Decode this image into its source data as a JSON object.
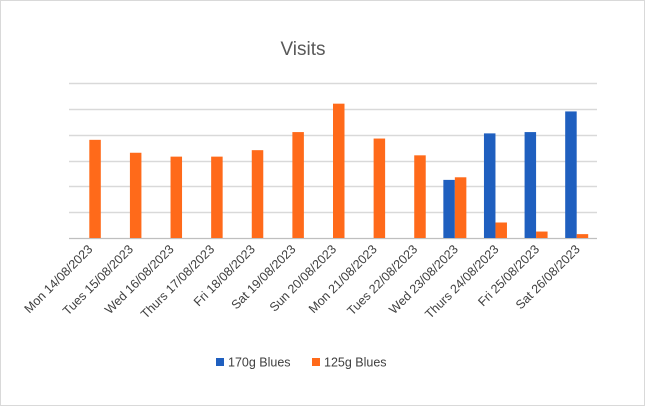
{
  "chart_data": {
    "type": "bar",
    "title": "Visits",
    "categories": [
      "Mon 14/08/2023",
      "Tues 15/08/2023",
      "Wed 16/08/2023",
      "Thurs 17/08/2023",
      "Fri 18/08/2023",
      "Sat 19/08/2023",
      "Sun 20/08/2023",
      "Mon 21/08/2023",
      "Tues 22/08/2023",
      "Wed 23/08/2023",
      "Thurs 24/08/2023",
      "Fri 25/08/2023",
      "Sat 26/08/2023"
    ],
    "series": [
      {
        "name": "170g Blues",
        "color": "#1f5fbf",
        "values": [
          0,
          0,
          0,
          0,
          0,
          0,
          0,
          0,
          0,
          45,
          81,
          82,
          98
        ]
      },
      {
        "name": "125g Blues",
        "color": "#ff6a1a",
        "values": [
          76,
          66,
          63,
          63,
          68,
          82,
          104,
          77,
          64,
          47,
          12,
          5,
          3
        ]
      }
    ],
    "ylim": [
      0,
      120
    ],
    "y_gridlines": 6,
    "y_tick_labels_shown": false,
    "grid": true,
    "legend_position": "bottom"
  }
}
